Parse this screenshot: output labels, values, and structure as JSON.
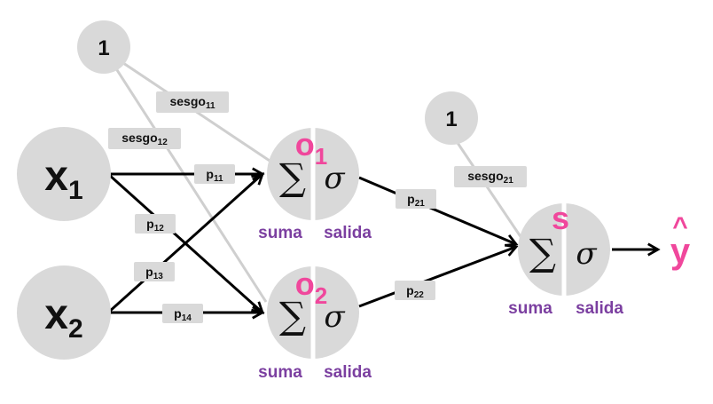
{
  "inputs": {
    "x1": {
      "base": "x",
      "sub": "1"
    },
    "x2": {
      "base": "x",
      "sub": "2"
    }
  },
  "bias_nodes": {
    "b1": "1",
    "b2": "1"
  },
  "neurons": {
    "o1": {
      "base": "o",
      "sub": "1",
      "sum_symbol": "∑",
      "act_symbol": "σ",
      "sum_label": "suma",
      "out_label": "salida"
    },
    "o2": {
      "base": "o",
      "sub": "2",
      "sum_symbol": "∑",
      "act_symbol": "σ",
      "sum_label": "suma",
      "out_label": "salida"
    },
    "s": {
      "base": "s",
      "sum_symbol": "∑",
      "act_symbol": "σ",
      "sum_label": "suma",
      "out_label": "salida"
    }
  },
  "output": {
    "hat": "^",
    "symbol": "y"
  },
  "weights": {
    "p11": {
      "base": "p",
      "sub": "11"
    },
    "p12": {
      "base": "p",
      "sub": "12"
    },
    "p13": {
      "base": "p",
      "sub": "13"
    },
    "p14": {
      "base": "p",
      "sub": "14"
    },
    "p21": {
      "base": "p",
      "sub": "21"
    },
    "p22": {
      "base": "p",
      "sub": "22"
    },
    "sesgo11": {
      "base": "sesgo",
      "sub": "11"
    },
    "sesgo12": {
      "base": "sesgo",
      "sub": "12"
    },
    "sesgo21": {
      "base": "sesgo",
      "sub": "21"
    }
  },
  "colors": {
    "node_fill": "#d9d9d9",
    "accent_pink": "#f0479c",
    "label_purple": "#7b3fa0",
    "bias_line": "#cfcfcf",
    "edge": "#000000"
  }
}
